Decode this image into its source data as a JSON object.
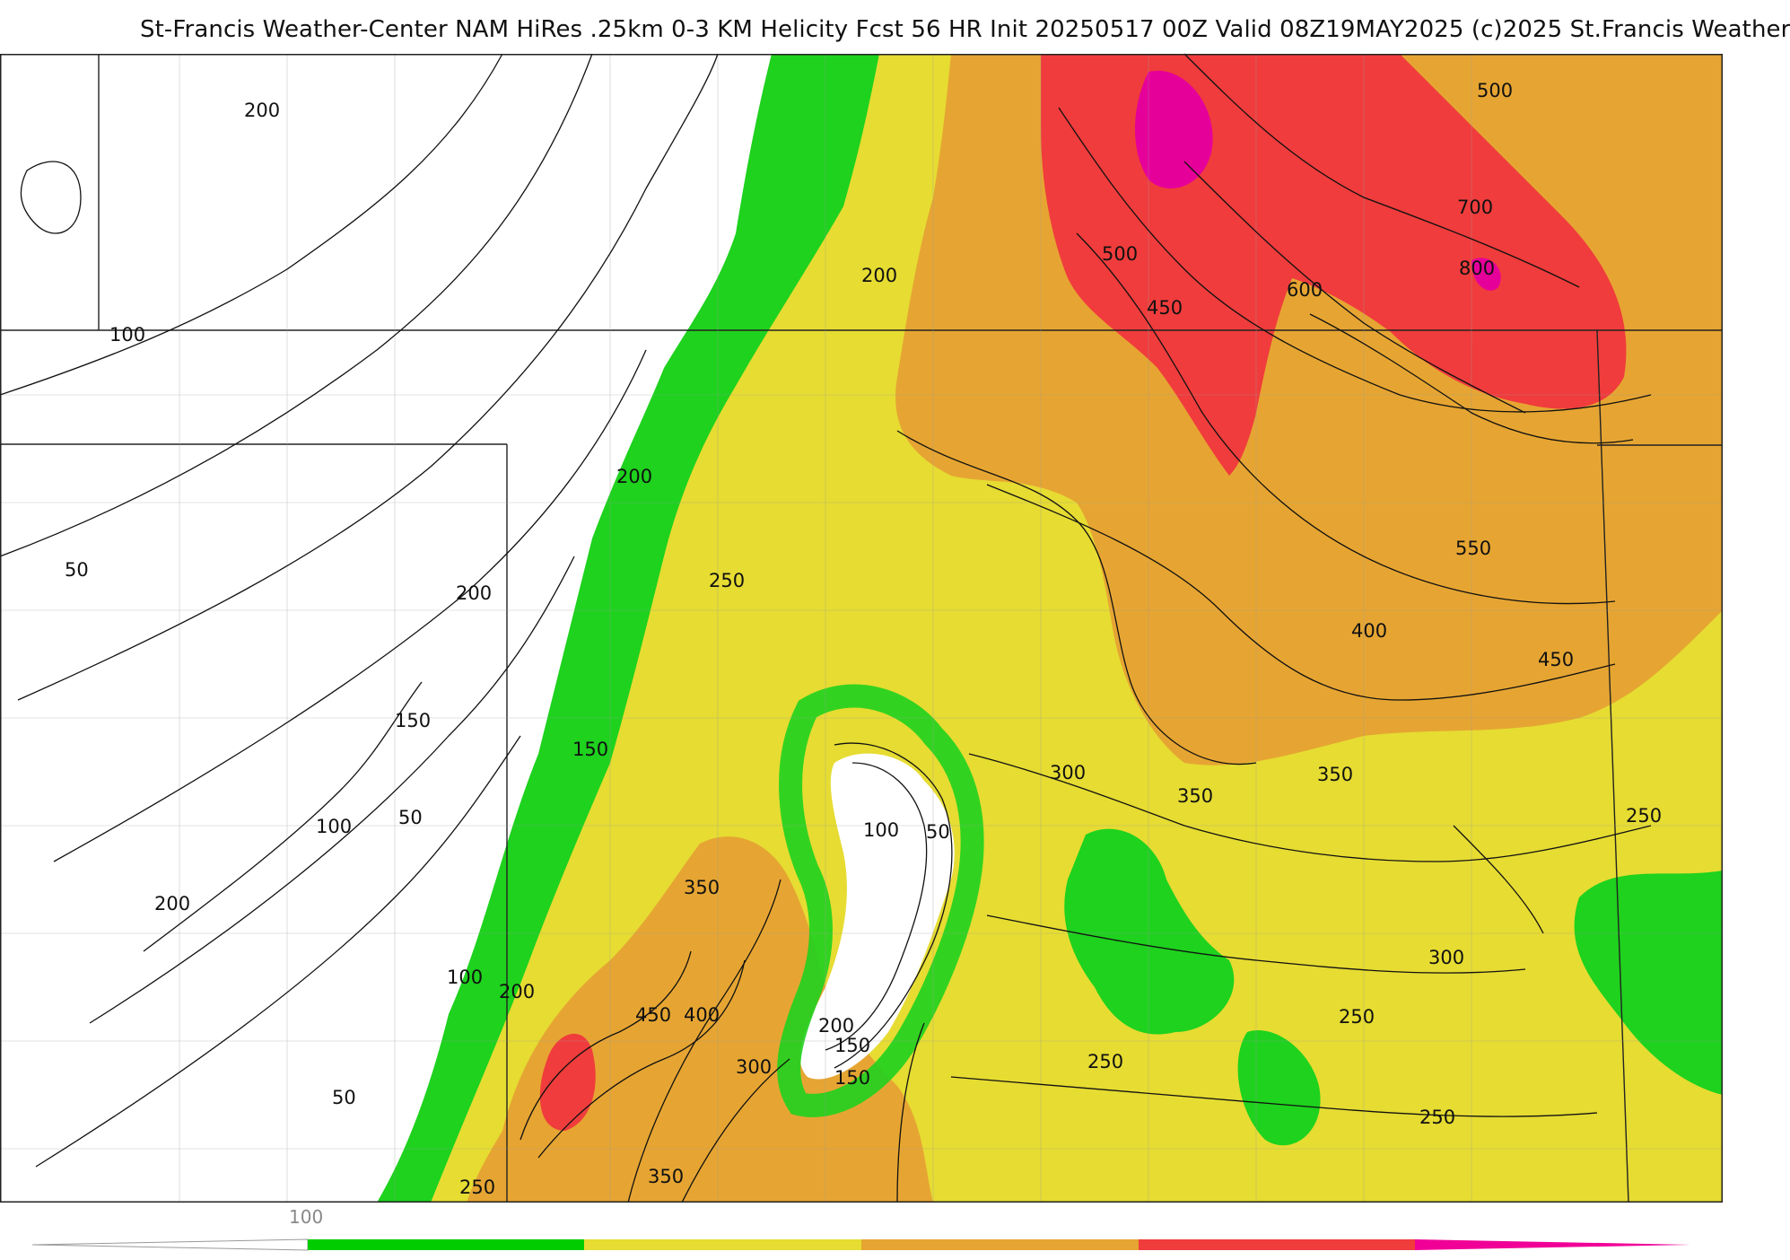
{
  "title": "St-Francis Weather-Center NAM HiRes .25km 0-3 KM Helicity Fcst 56 HR Init 20250517 00Z  Valid 08Z19MAY2025    (c)2025 St.Francis Weather",
  "colorbar": {
    "tick_label": "100",
    "colors": [
      "#ffffff",
      "#00cc00",
      "#e6dc32",
      "#e6a532",
      "#f03c3c",
      "#f00096"
    ]
  },
  "fill_colors": {
    "green": "#1ed21e",
    "yellow": "#e6dc32",
    "orange": "#e6a532",
    "red": "#f03c3c",
    "magenta": "#e6009a"
  },
  "contour_labels": [
    "200",
    "100",
    "50",
    "200",
    "150",
    "100",
    "50",
    "200",
    "200",
    "150",
    "100",
    "200",
    "50",
    "200",
    "250",
    "150",
    "100",
    "50",
    "350",
    "450",
    "400",
    "300",
    "150",
    "200",
    "250",
    "350",
    "500",
    "450",
    "600",
    "700",
    "800",
    "500",
    "550",
    "400",
    "450",
    "300",
    "350",
    "350",
    "250",
    "300",
    "250",
    "250",
    "250"
  ]
}
